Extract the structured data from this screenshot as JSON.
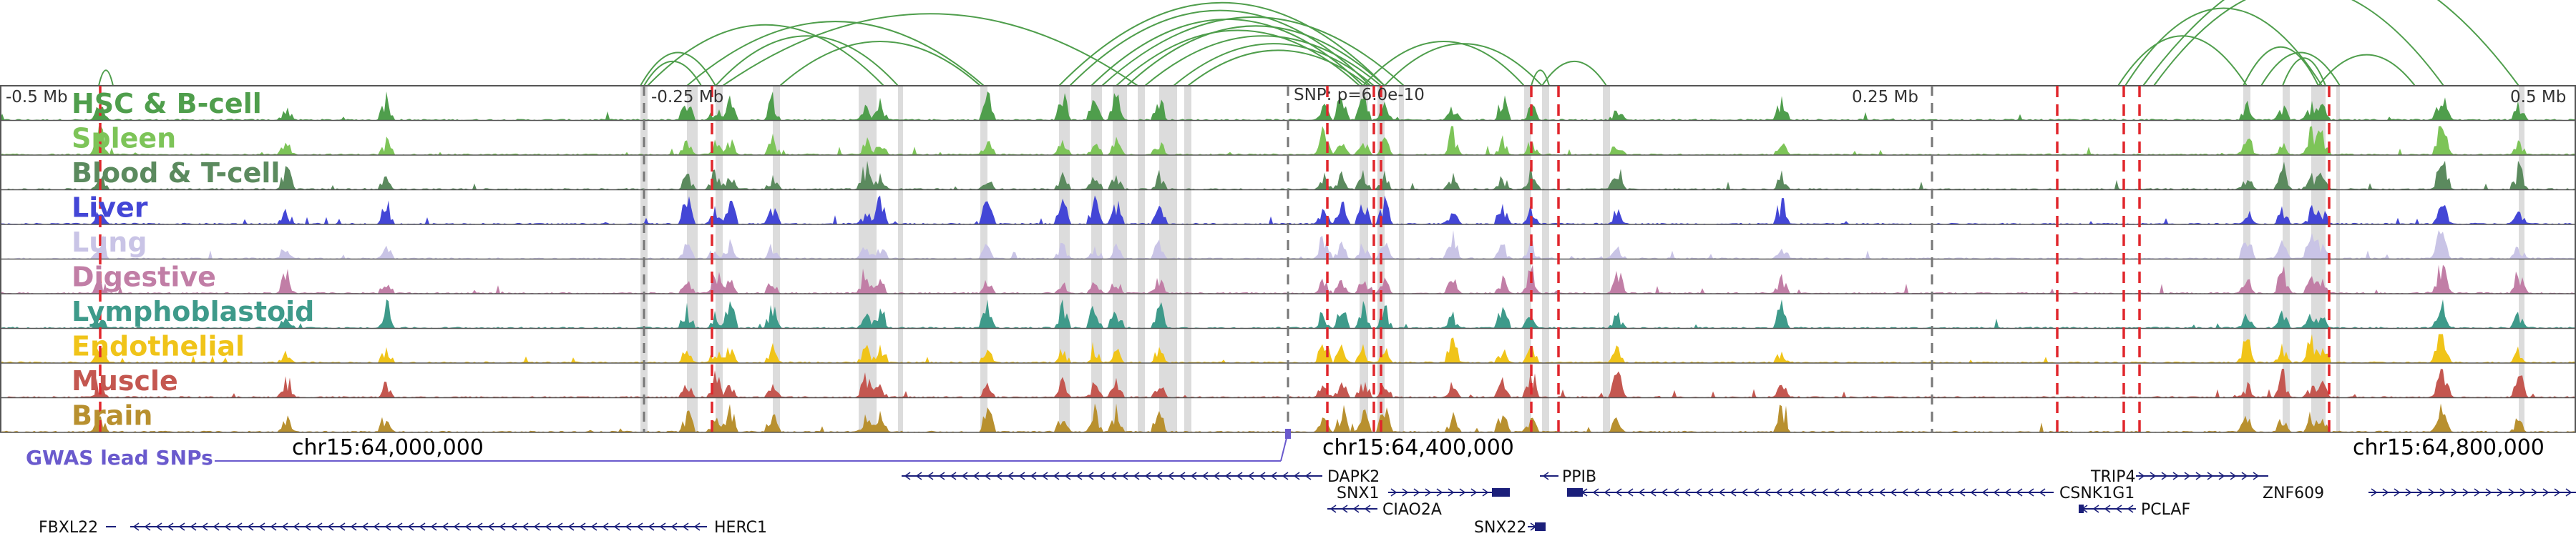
{
  "scale": {
    "labels": [
      "-0.5 Mb",
      "-0.25 Mb",
      "SNP: p=6.0e-10",
      "0.25 Mb",
      "0.5 Mb"
    ]
  },
  "tracks": [
    {
      "name": "HSC & B-cell",
      "color": "#4f9e4c"
    },
    {
      "name": "Spleen",
      "color": "#7dc458"
    },
    {
      "name": "Blood & T-cell",
      "color": "#5b8a5e"
    },
    {
      "name": "Liver",
      "color": "#4346d6"
    },
    {
      "name": "Lung",
      "color": "#c9c4e6"
    },
    {
      "name": "Digestive",
      "color": "#c17ea6"
    },
    {
      "name": "Lymphoblastoid",
      "color": "#3e9a8a"
    },
    {
      "name": "Endothelial",
      "color": "#f0c419"
    },
    {
      "name": "Muscle",
      "color": "#c45750"
    },
    {
      "name": "Brain",
      "color": "#b8902f"
    }
  ],
  "gwas": {
    "label": "GWAS lead SNPs",
    "color": "#6a5acd"
  },
  "coordinates": [
    "chr15:64,000,000",
    "chr15:64,400,000",
    "chr15:64,800,000"
  ],
  "genes": [
    {
      "name": "DAPK2",
      "strand": "-"
    },
    {
      "name": "SNX1",
      "strand": "+"
    },
    {
      "name": "CIAO2A",
      "strand": "-"
    },
    {
      "name": "SNX22",
      "strand": "+"
    },
    {
      "name": "PPIB",
      "strand": "-"
    },
    {
      "name": "CSNK1G1",
      "strand": "-"
    },
    {
      "name": "TRIP4",
      "strand": "+"
    },
    {
      "name": "PCLAF",
      "strand": "-"
    },
    {
      "name": "ZNF609",
      "strand": "+"
    },
    {
      "name": "FBXL22",
      "strand": "+"
    },
    {
      "name": "HERC1",
      "strand": "-"
    }
  ],
  "colors": {
    "frame": "#555555",
    "arc": "#4f9e4c",
    "highlight": "#dcdcdc",
    "snp_line": "#e0262c",
    "gene": "#1b1f7a",
    "gray_tick": "#777777"
  }
}
